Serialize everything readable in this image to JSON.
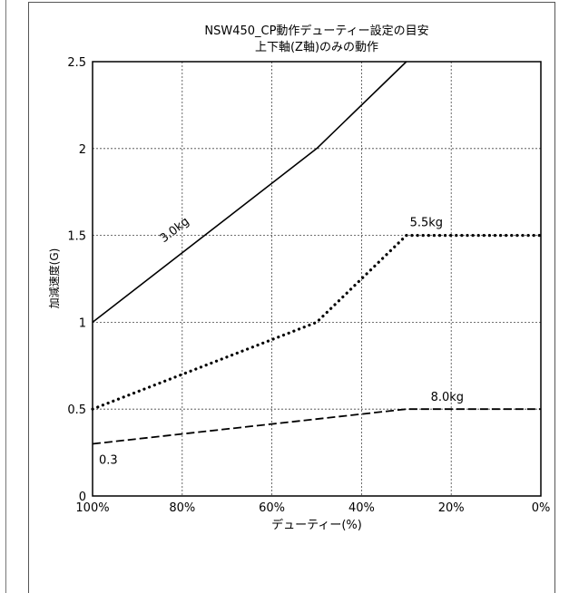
{
  "chart_data": {
    "type": "line",
    "title": "NSW450_CP動作デューティー設定の目安",
    "subtitle": "上下軸(Z軸)のみの動作",
    "xlabel": "デューティー(%)",
    "ylabel": "加減速度(G)",
    "x_ticks": [
      "100%",
      "80%",
      "60%",
      "40%",
      "20%",
      "0%"
    ],
    "y_ticks": [
      "0",
      "0.5",
      "1",
      "1.5",
      "2",
      "2.5"
    ],
    "xlim": [
      100,
      0
    ],
    "ylim": [
      0,
      2.5
    ],
    "grid": true,
    "series": [
      {
        "name": "3.0kg",
        "style": "solid",
        "x": [
          100,
          50,
          30
        ],
        "y": [
          1.0,
          2.0,
          2.5
        ]
      },
      {
        "name": "5.5kg",
        "style": "dotted",
        "x": [
          100,
          50,
          30,
          0
        ],
        "y": [
          0.5,
          1.0,
          1.5,
          1.5
        ]
      },
      {
        "name": "8.0kg",
        "style": "dashed",
        "x": [
          100,
          30,
          0
        ],
        "y": [
          0.3,
          0.5,
          0.5
        ]
      }
    ],
    "annotations": [
      {
        "text": "0.3"
      }
    ]
  }
}
